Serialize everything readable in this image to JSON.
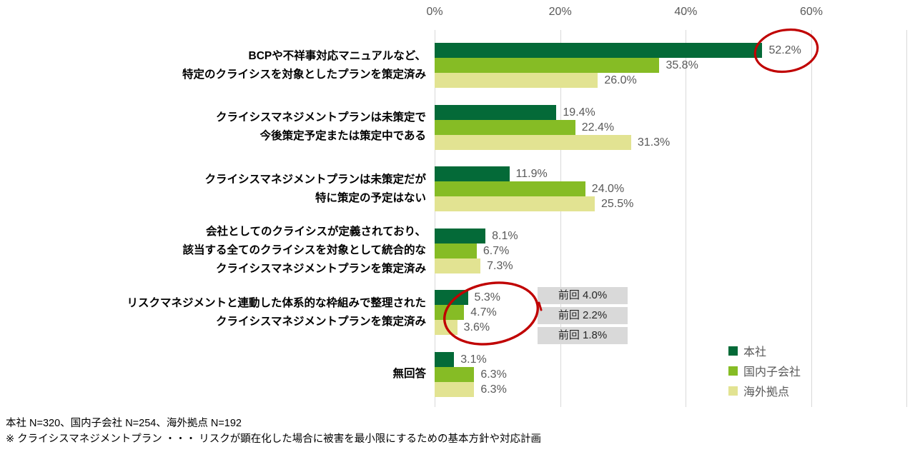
{
  "chart_data": {
    "type": "bar",
    "orientation": "horizontal",
    "title": "",
    "unit": "%",
    "x_axis": {
      "tick_labels": [
        "0%",
        "20%",
        "40%",
        "60%"
      ],
      "ticks": [
        0,
        20,
        40,
        60
      ],
      "max": 60,
      "grid": true
    },
    "series_names": [
      "本社",
      "国内子会社",
      "海外拠点"
    ],
    "legend": [
      {
        "label": "本社",
        "color": "#046A38"
      },
      {
        "label": "国内子会社",
        "color": "#86BC25"
      },
      {
        "label": "海外拠点",
        "color": "#E2E392"
      }
    ],
    "categories": [
      {
        "label_lines": [
          "BCPや不祥事対応マニュアルなど、",
          "特定のクライシスを対象としたプランを策定済み"
        ],
        "values": [
          52.2,
          35.8,
          26.0
        ]
      },
      {
        "label_lines": [
          "クライシスマネジメントプランは未策定で",
          "今後策定予定または策定中である"
        ],
        "values": [
          19.4,
          22.4,
          31.3
        ]
      },
      {
        "label_lines": [
          "クライシスマネジメントプランは未策定だが",
          "特に策定の予定はない"
        ],
        "values": [
          11.9,
          24.0,
          25.5
        ]
      },
      {
        "label_lines": [
          "会社としてのクライシスが定義されており、",
          "該当する全てのクライシスを対象として統合的な",
          "クライシスマネジメントプランを策定済み"
        ],
        "values": [
          8.1,
          6.7,
          7.3
        ]
      },
      {
        "label_lines": [
          "リスクマネジメントと連動した体系的な枠組みで整理された",
          "クライシスマネジメントプランを策定済み"
        ],
        "values": [
          5.3,
          4.7,
          3.6
        ]
      },
      {
        "label_lines": [
          "無回答"
        ],
        "values": [
          3.1,
          6.3,
          6.3
        ]
      }
    ],
    "annotations": {
      "previous_labels": [
        "前回 4.0%",
        "前回 2.2%",
        "前回 1.8%"
      ],
      "circled_values": [
        "52.2%",
        "5.3% 4.7% 3.6%"
      ]
    },
    "footnotes": [
      "本社 N=320、国内子会社 N=254、海外拠点 N=192",
      "※ クライシスマネジメントプラン ・・・ リスクが顕在化した場合に被害を最小限にするための基本方針や対応計画"
    ],
    "colors": {
      "highlight_red": "#C00000",
      "gridline": "#D9D9D9",
      "value_text": "#595959",
      "callout_bg": "#D9D9D9"
    }
  }
}
